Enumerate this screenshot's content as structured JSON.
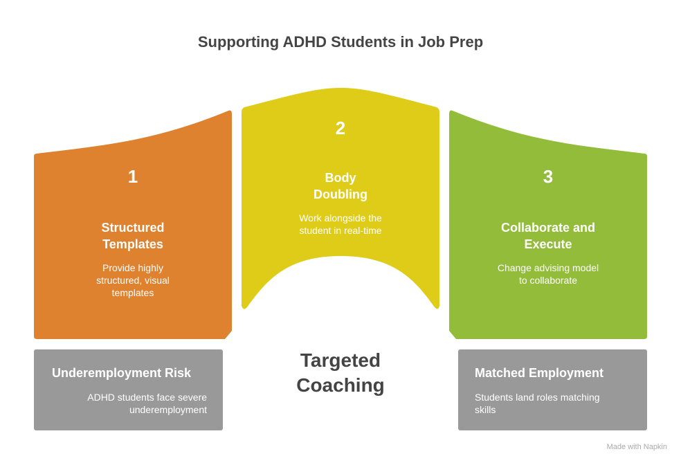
{
  "title": "Supporting ADHD Students in Job Prep",
  "steps": [
    {
      "number": "1",
      "heading": "Structured Templates",
      "description": "Provide highly structured, visual templates",
      "color": "#DE8230"
    },
    {
      "number": "2",
      "heading": "Body Doubling",
      "description": "Work alongside the student in real-time",
      "color": "#DECC18"
    },
    {
      "number": "3",
      "heading": "Collaborate and Execute",
      "description": "Change advising model to collaborate",
      "color": "#92BC3A"
    }
  ],
  "start": {
    "heading": "Underemployment Risk",
    "description": "ADHD students face severe underemployment"
  },
  "center": {
    "label": "Targeted Coaching"
  },
  "end": {
    "heading": "Matched Employment",
    "description": "Students land roles matching skills"
  },
  "box_color": "#999999",
  "watermark": "Made with Napkin"
}
